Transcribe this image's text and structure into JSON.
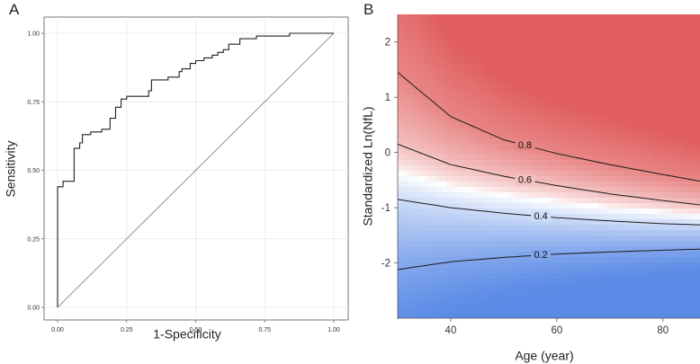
{
  "panel_labels": {
    "a": "A",
    "b": "B"
  },
  "chart_data": [
    {
      "type": "line",
      "panel": "A",
      "title": "",
      "xlabel": "1-Specificity",
      "ylabel": "Sensitivity",
      "xlim": [
        0,
        1
      ],
      "ylim": [
        0,
        1
      ],
      "x_ticks": [
        "0.00",
        "0.25",
        "0.50",
        "0.75",
        "1.00"
      ],
      "y_ticks": [
        "0.00",
        "0.25",
        "0.50",
        "0.75",
        "1.00"
      ],
      "grid": true,
      "series": [
        {
          "name": "ROC curve",
          "style": "step",
          "points": [
            [
              0,
              0
            ],
            [
              0,
              0.44
            ],
            [
              0.02,
              0.44
            ],
            [
              0.02,
              0.46
            ],
            [
              0.06,
              0.46
            ],
            [
              0.06,
              0.58
            ],
            [
              0.08,
              0.58
            ],
            [
              0.08,
              0.6
            ],
            [
              0.09,
              0.6
            ],
            [
              0.09,
              0.63
            ],
            [
              0.12,
              0.63
            ],
            [
              0.12,
              0.64
            ],
            [
              0.16,
              0.64
            ],
            [
              0.16,
              0.65
            ],
            [
              0.19,
              0.65
            ],
            [
              0.19,
              0.69
            ],
            [
              0.21,
              0.69
            ],
            [
              0.21,
              0.73
            ],
            [
              0.23,
              0.73
            ],
            [
              0.23,
              0.76
            ],
            [
              0.25,
              0.76
            ],
            [
              0.25,
              0.77
            ],
            [
              0.33,
              0.77
            ],
            [
              0.33,
              0.79
            ],
            [
              0.34,
              0.79
            ],
            [
              0.34,
              0.83
            ],
            [
              0.4,
              0.83
            ],
            [
              0.4,
              0.84
            ],
            [
              0.44,
              0.84
            ],
            [
              0.44,
              0.86
            ],
            [
              0.45,
              0.86
            ],
            [
              0.45,
              0.87
            ],
            [
              0.48,
              0.87
            ],
            [
              0.48,
              0.89
            ],
            [
              0.5,
              0.89
            ],
            [
              0.5,
              0.9
            ],
            [
              0.53,
              0.9
            ],
            [
              0.53,
              0.91
            ],
            [
              0.56,
              0.91
            ],
            [
              0.56,
              0.92
            ],
            [
              0.58,
              0.92
            ],
            [
              0.58,
              0.93
            ],
            [
              0.6,
              0.93
            ],
            [
              0.6,
              0.94
            ],
            [
              0.62,
              0.94
            ],
            [
              0.62,
              0.96
            ],
            [
              0.66,
              0.96
            ],
            [
              0.66,
              0.98
            ],
            [
              0.72,
              0.98
            ],
            [
              0.72,
              0.99
            ],
            [
              0.84,
              0.99
            ],
            [
              0.84,
              1.0
            ],
            [
              1.0,
              1.0
            ]
          ]
        },
        {
          "name": "Reference diagonal",
          "style": "line",
          "points": [
            [
              0,
              0
            ],
            [
              1,
              1
            ]
          ]
        }
      ]
    },
    {
      "type": "heatmap",
      "panel": "B",
      "title": "",
      "xlabel": "Age (year)",
      "ylabel": "Standardized Ln(NfL)",
      "xlim": [
        30,
        87
      ],
      "ylim": [
        -3,
        2.5
      ],
      "x_ticks": [
        "40",
        "60",
        "80"
      ],
      "y_ticks": [
        "-2",
        "-1",
        "0",
        "1",
        "2"
      ],
      "color_low": "#5a8ae6",
      "color_mid": "#ffffff",
      "color_high": "#e05a5a",
      "value_range": [
        0,
        1
      ],
      "contours": [
        {
          "level": 0.2,
          "label": "0.2",
          "x": [
            30,
            40,
            50,
            60,
            70,
            80,
            87
          ],
          "y": [
            -2.12,
            -1.98,
            -1.9,
            -1.84,
            -1.8,
            -1.77,
            -1.75
          ]
        },
        {
          "level": 0.4,
          "label": "0.4",
          "x": [
            30,
            40,
            50,
            60,
            70,
            80,
            87
          ],
          "y": [
            -0.85,
            -1.0,
            -1.1,
            -1.18,
            -1.24,
            -1.29,
            -1.31
          ]
        },
        {
          "level": 0.6,
          "label": "0.6",
          "x": [
            30,
            40,
            50,
            60,
            70,
            80,
            87
          ],
          "y": [
            0.15,
            -0.22,
            -0.43,
            -0.6,
            -0.75,
            -0.87,
            -0.95
          ]
        },
        {
          "level": 0.8,
          "label": "0.8",
          "x": [
            30,
            40,
            50,
            60,
            70,
            80,
            87
          ],
          "y": [
            1.45,
            0.65,
            0.23,
            -0.02,
            -0.22,
            -0.4,
            -0.52
          ]
        }
      ]
    }
  ]
}
